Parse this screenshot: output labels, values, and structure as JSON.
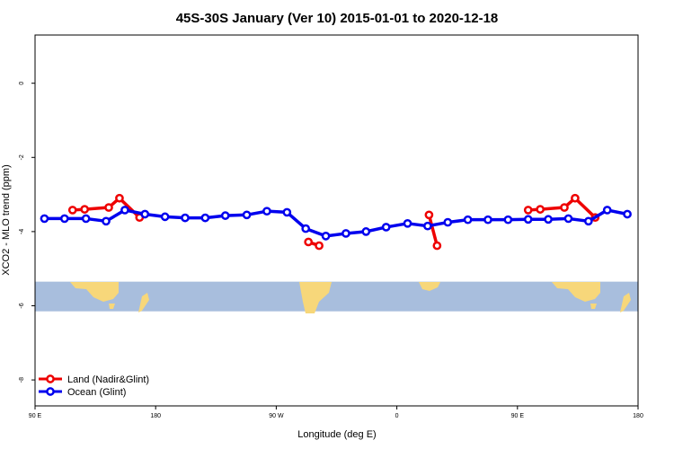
{
  "chart_data": {
    "type": "line",
    "title": "45S-30S January (Ver 10)   2015-01-01 to 2020-12-18",
    "xlabel": "Longitude (deg E)",
    "ylabel": "XCO2 - MLO trend (ppm)",
    "xlim": [
      90,
      540
    ],
    "ylim": [
      -8.7,
      1.3
    ],
    "x_ticks": [
      {
        "value": 90,
        "label": "90 E"
      },
      {
        "value": 180,
        "label": "180"
      },
      {
        "value": 270,
        "label": "90 W"
      },
      {
        "value": 360,
        "label": "0"
      },
      {
        "value": 450,
        "label": "90 E"
      },
      {
        "value": 540,
        "label": "180"
      }
    ],
    "y_ticks": [
      {
        "value": 0,
        "label": "0"
      },
      {
        "value": -2,
        "label": "-2"
      },
      {
        "value": -4,
        "label": "-4"
      },
      {
        "value": -6,
        "label": "-6"
      },
      {
        "value": -8,
        "label": "-8"
      }
    ],
    "map_strip": {
      "y_top": -5.35,
      "y_bottom": -6.15,
      "ocean_color": "#a8bedd",
      "land_color": "#f7d77a"
    },
    "legend_position": "bottom-left",
    "series": [
      {
        "name": "Land (Nadir&Glint)",
        "color": "#ee0000",
        "segments": [
          [
            [
              118,
              -3.42
            ],
            [
              127,
              -3.4
            ],
            [
              145,
              -3.35
            ],
            [
              153,
              -3.1
            ],
            [
              168,
              -3.62
            ]
          ],
          [
            [
              294,
              -4.28
            ],
            [
              302,
              -4.38
            ]
          ],
          [
            [
              384,
              -3.55
            ],
            [
              390,
              -4.38
            ]
          ],
          [
            [
              458,
              -3.42
            ],
            [
              467,
              -3.4
            ],
            [
              485,
              -3.35
            ],
            [
              493,
              -3.1
            ],
            [
              508,
              -3.62
            ]
          ]
        ]
      },
      {
        "name": "Ocean (Glint)",
        "color": "#0000ee",
        "segments": [
          [
            [
              97,
              -3.65
            ],
            [
              112,
              -3.65
            ],
            [
              128,
              -3.65
            ],
            [
              143,
              -3.72
            ],
            [
              157,
              -3.42
            ],
            [
              172,
              -3.53
            ],
            [
              187,
              -3.6
            ],
            [
              202,
              -3.63
            ],
            [
              217,
              -3.63
            ],
            [
              232,
              -3.57
            ],
            [
              248,
              -3.55
            ],
            [
              263,
              -3.45
            ],
            [
              278,
              -3.48
            ],
            [
              292,
              -3.92
            ],
            [
              307,
              -4.12
            ],
            [
              322,
              -4.05
            ],
            [
              337,
              -4.0
            ],
            [
              352,
              -3.88
            ],
            [
              368,
              -3.78
            ],
            [
              383,
              -3.85
            ],
            [
              398,
              -3.75
            ],
            [
              413,
              -3.68
            ],
            [
              428,
              -3.68
            ],
            [
              443,
              -3.68
            ],
            [
              458,
              -3.67
            ],
            [
              473,
              -3.67
            ],
            [
              488,
              -3.65
            ],
            [
              503,
              -3.72
            ],
            [
              517,
              -3.42
            ],
            [
              532,
              -3.53
            ]
          ]
        ]
      }
    ]
  }
}
